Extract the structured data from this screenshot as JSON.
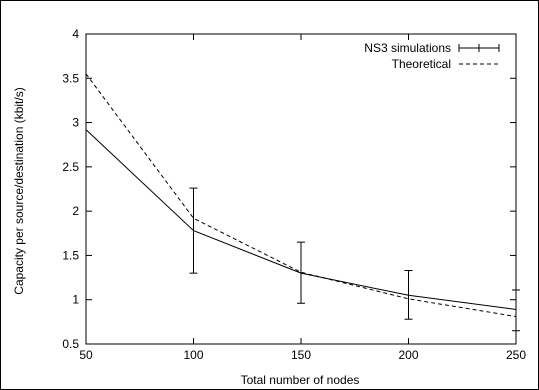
{
  "chart_data": {
    "type": "line",
    "xlabel": "Total number of nodes",
    "ylabel": "Capacity per source/destination (kbit/s)",
    "xlim": [
      50,
      250
    ],
    "ylim": [
      0.5,
      4
    ],
    "x_ticks": [
      50,
      100,
      150,
      200,
      250
    ],
    "y_ticks": [
      0.5,
      1,
      1.5,
      2,
      2.5,
      3,
      3.5,
      4
    ],
    "x_tick_labels": [
      "50",
      "100",
      "150",
      "200",
      "250"
    ],
    "y_tick_labels": [
      "0.5",
      "1",
      "1.5",
      "2",
      "2.5",
      "3",
      "3.5",
      "4"
    ],
    "grid": false,
    "legend_position": "top-right",
    "series": [
      {
        "name": "NS3 simulations",
        "style": "solid-with-errorbars",
        "color": "#000000",
        "x": [
          50,
          100,
          150,
          200,
          250
        ],
        "y": [
          2.92,
          1.78,
          1.3,
          1.05,
          0.89
        ],
        "error_low": [
          2.92,
          1.3,
          0.96,
          0.78,
          0.65
        ],
        "error_high": [
          2.92,
          2.26,
          1.65,
          1.33,
          1.11
        ]
      },
      {
        "name": "Theoretical",
        "style": "dashed",
        "color": "#000000",
        "x": [
          50,
          100,
          150,
          200,
          250
        ],
        "y": [
          3.55,
          1.92,
          1.31,
          1.01,
          0.81
        ]
      }
    ]
  }
}
